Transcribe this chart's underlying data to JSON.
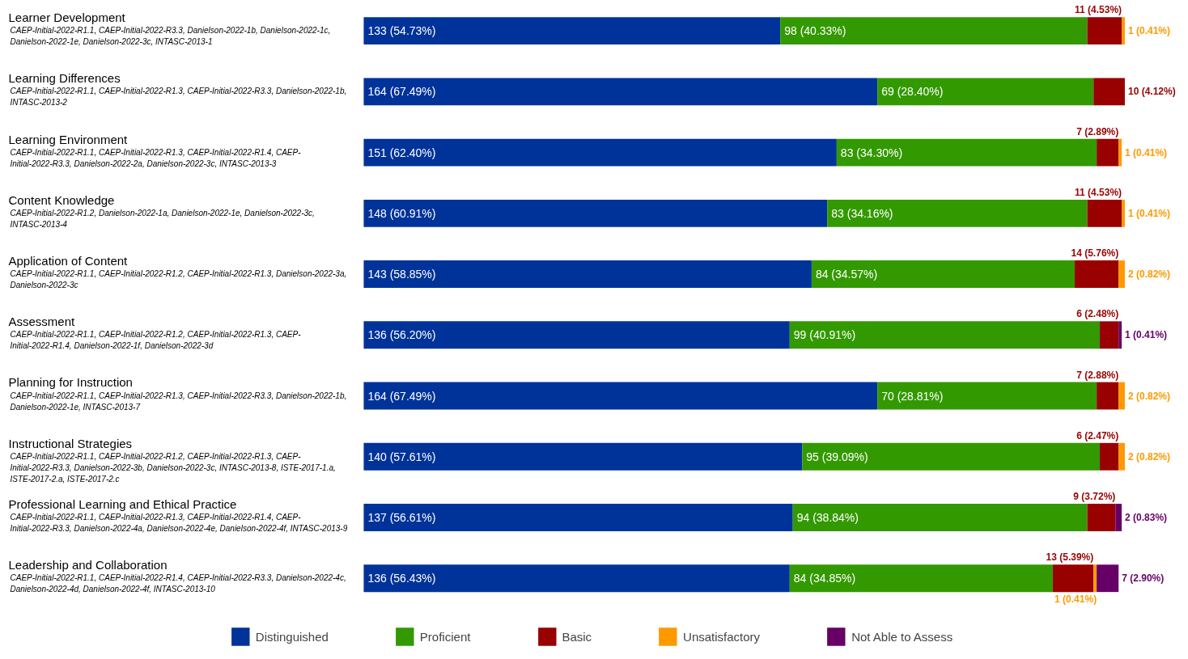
{
  "chart_data": {
    "type": "bar",
    "orientation": "horizontal",
    "stacked": true,
    "legend": "bottom",
    "grid": false,
    "tick_labels": false,
    "categories": [
      "Learner Development",
      "Learning Differences",
      "Learning Environment",
      "Content Knowledge",
      "Application of Content",
      "Assessment",
      "Planning for Instruction",
      "Instructional Strategies",
      "Professional Learning and Ethical Practice",
      "Leadership and Collaboration"
    ],
    "annotations": [
      "CAEP-Initial-2022-R1.1, CAEP-Initial-2022-R3.3, Danielson-2022-1b, Danielson-2022-1c, Danielson-2022-1e, Danielson-2022-3c, INTASC-2013-1",
      "CAEP-Initial-2022-R1.1, CAEP-Initial-2022-R1.3, CAEP-Initial-2022-R3.3, Danielson-2022-1b, INTASC-2013-2",
      "CAEP-Initial-2022-R1.1, CAEP-Initial-2022-R1.3, CAEP-Initial-2022-R1.4, CAEP-Initial-2022-R3.3, Danielson-2022-2a, Danielson-2022-3c, INTASC-2013-3",
      "CAEP-Initial-2022-R1.2, Danielson-2022-1a, Danielson-2022-1e, Danielson-2022-3c, INTASC-2013-4",
      "CAEP-Initial-2022-R1.1, CAEP-Initial-2022-R1.2, CAEP-Initial-2022-R1.3, Danielson-2022-3a, Danielson-2022-3c",
      "CAEP-Initial-2022-R1.1, CAEP-Initial-2022-R1.2, CAEP-Initial-2022-R1.3, CAEP-Initial-2022-R1.4, Danielson-2022-1f, Danielson-2022-3d",
      "CAEP-Initial-2022-R1.1, CAEP-Initial-2022-R1.3, CAEP-Initial-2022-R3.3, Danielson-2022-1b, Danielson-2022-1e, INTASC-2013-7",
      "CAEP-Initial-2022-R1.1, CAEP-Initial-2022-R1.2, CAEP-Initial-2022-R1.3, CAEP-Initial-2022-R3.3, Danielson-2022-3b, Danielson-2022-3c, INTASC-2013-8, ISTE-2017-1.a, ISTE-2017-2.a, ISTE-2017-2.c",
      "CAEP-Initial-2022-R1.1, CAEP-Initial-2022-R1.3, CAEP-Initial-2022-R1.4, CAEP-Initial-2022-R3.3, Danielson-2022-4a, Danielson-2022-4e, Danielson-2022-4f, INTASC-2013-9",
      "CAEP-Initial-2022-R1.1, CAEP-Initial-2022-R1.4, CAEP-Initial-2022-R3.3, Danielson-2022-4c, Danielson-2022-4d, Danielson-2022-4f, INTASC-2013-10"
    ],
    "series": [
      {
        "name": "Distinguished",
        "color": "#003399",
        "values": [
          133,
          164,
          151,
          148,
          143,
          136,
          164,
          140,
          137,
          136
        ],
        "value_labels": [
          "133 (54.73%)",
          "164 (67.49%)",
          "151 (62.40%)",
          "148 (60.91%)",
          "143 (58.85%)",
          "136 (56.20%)",
          "164 (67.49%)",
          "140 (57.61%)",
          "137 (56.61%)",
          "136 (56.43%)"
        ]
      },
      {
        "name": "Proficient",
        "color": "#339900",
        "values": [
          98,
          69,
          83,
          83,
          84,
          99,
          70,
          95,
          94,
          84
        ],
        "value_labels": [
          "98 (40.33%)",
          "69 (28.40%)",
          "83 (34.30%)",
          "83 (34.16%)",
          "84 (34.57%)",
          "99 (40.91%)",
          "70 (28.81%)",
          "95 (39.09%)",
          "94 (38.84%)",
          "84 (34.85%)"
        ]
      },
      {
        "name": "Basic",
        "color": "#990000",
        "values": [
          11,
          10,
          7,
          11,
          14,
          6,
          7,
          6,
          9,
          13
        ],
        "value_labels": [
          "11 (4.53%)",
          "10 (4.12%)",
          "7 (2.89%)",
          "11 (4.53%)",
          "14 (5.76%)",
          "6 (2.48%)",
          "7 (2.88%)",
          "6 (2.47%)",
          "9 (3.72%)",
          "13 (5.39%)"
        ]
      },
      {
        "name": "Unsatisfactory",
        "color": "#ff9900",
        "values": [
          1,
          null,
          1,
          1,
          2,
          null,
          2,
          2,
          null,
          1
        ],
        "value_labels": [
          "1 (0.41%)",
          null,
          "1 (0.41%)",
          "1 (0.41%)",
          "2 (0.82%)",
          null,
          "2 (0.82%)",
          "2 (0.82%)",
          null,
          "1 (0.41%)"
        ]
      },
      {
        "name": "Not Able to Assess",
        "color": "#660066",
        "values": [
          null,
          null,
          null,
          null,
          null,
          1,
          null,
          null,
          2,
          7
        ],
        "value_labels": [
          null,
          null,
          null,
          null,
          null,
          "1 (0.41%)",
          null,
          null,
          "2 (0.83%)",
          "7 (2.90%)"
        ]
      }
    ]
  }
}
